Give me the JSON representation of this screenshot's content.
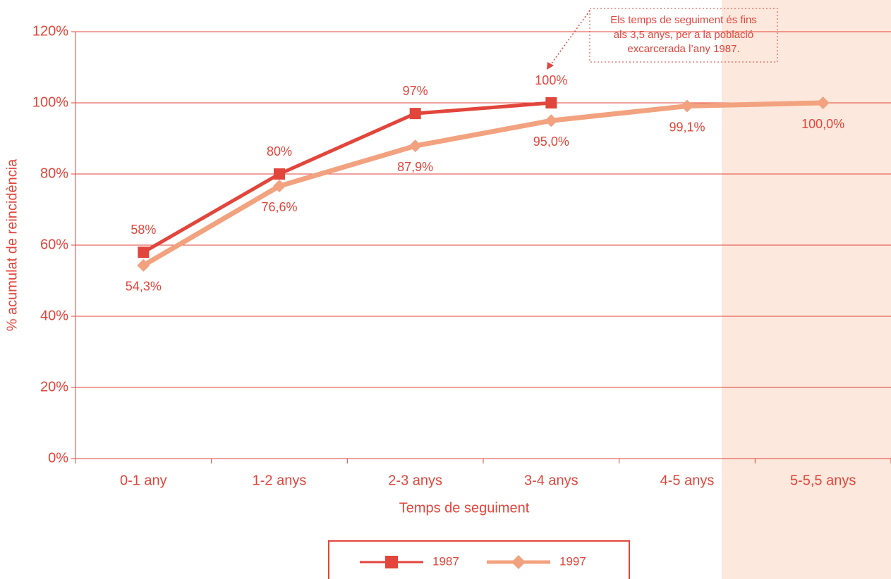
{
  "chart_data": {
    "type": "line",
    "y_label": "% acumulat de reincidència",
    "x_label": "Temps de seguiment",
    "categories": [
      "0-1 any",
      "1-2 anys",
      "2-3 anys",
      "3-4 anys",
      "4-5 anys",
      "5-5,5 anys"
    ],
    "series": [
      {
        "name": "1987",
        "color": "#e2453b",
        "marker": "square",
        "values": [
          58,
          80,
          97,
          100,
          null,
          null
        ],
        "value_labels": [
          "58%",
          "80%",
          "97%",
          "100%",
          null,
          null
        ]
      },
      {
        "name": "1997",
        "color": "#f2a27f",
        "marker": "diamond",
        "values": [
          54.3,
          76.6,
          87.9,
          95.0,
          99.1,
          100.0
        ],
        "value_labels": [
          "54,3%",
          "76,6%",
          "87,9%",
          "95,0%",
          "99,1%",
          "100,0%"
        ]
      }
    ],
    "ylim": [
      0,
      120
    ],
    "yticks": [
      {
        "value": 0,
        "label": "0%"
      },
      {
        "value": 20,
        "label": "20%"
      },
      {
        "value": 40,
        "label": "40%"
      },
      {
        "value": 60,
        "label": "60%"
      },
      {
        "value": 80,
        "label": "80%"
      },
      {
        "value": 100,
        "label": "100%"
      },
      {
        "value": 120,
        "label": "120%"
      }
    ],
    "grid": true,
    "legend": "bottom",
    "annotation": [
      "Els temps de seguiment és fins",
      "als 3,5 anys, per a la població",
      "excarcerada l’any 1987."
    ]
  }
}
